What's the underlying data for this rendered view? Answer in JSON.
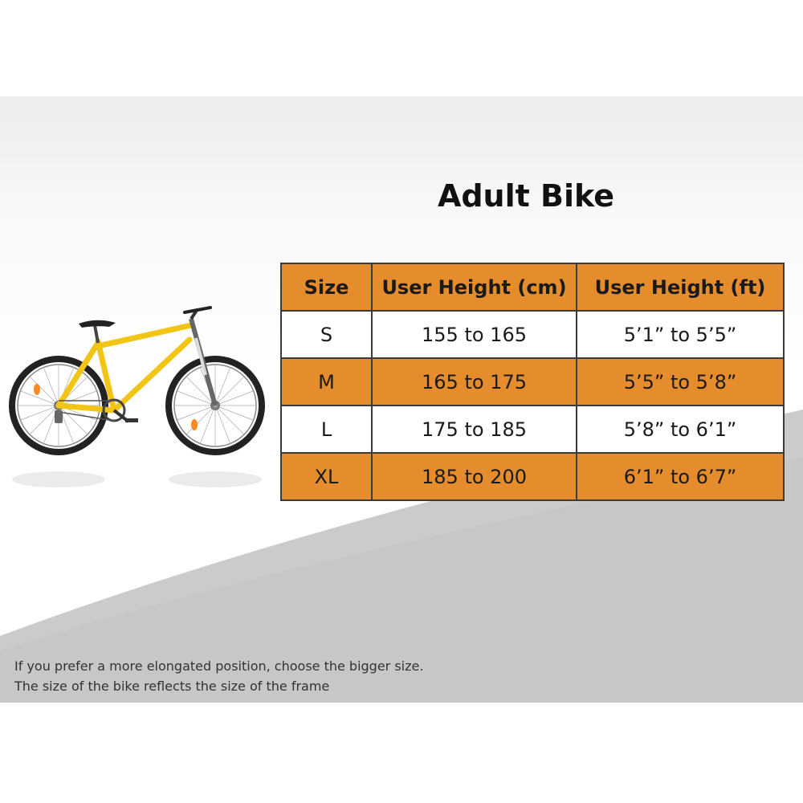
{
  "title": "Adult Bike",
  "table": {
    "headers": [
      "Size",
      "User Height (cm)",
      "User Height (ft)"
    ],
    "rows": [
      [
        "S",
        "155 to 165",
        "5’1” to 5’5”"
      ],
      [
        "M",
        "165 to 175",
        "5’5” to 5’8”"
      ],
      [
        "L",
        "175 to 185",
        "5’8” to 6’1”"
      ],
      [
        "XL",
        "185 to 200",
        "6’1” to 6’7”"
      ]
    ]
  },
  "notes": [
    "If you prefer a more elongated position, choose the bigger size.",
    "The size of the bike reflects the size of the frame"
  ],
  "colors": {
    "orange_row": "#e58c2c",
    "bike_frame": "#f2c414",
    "wave_gray": "#c9c9c9"
  },
  "images": {
    "bike": "bike-illustration"
  }
}
